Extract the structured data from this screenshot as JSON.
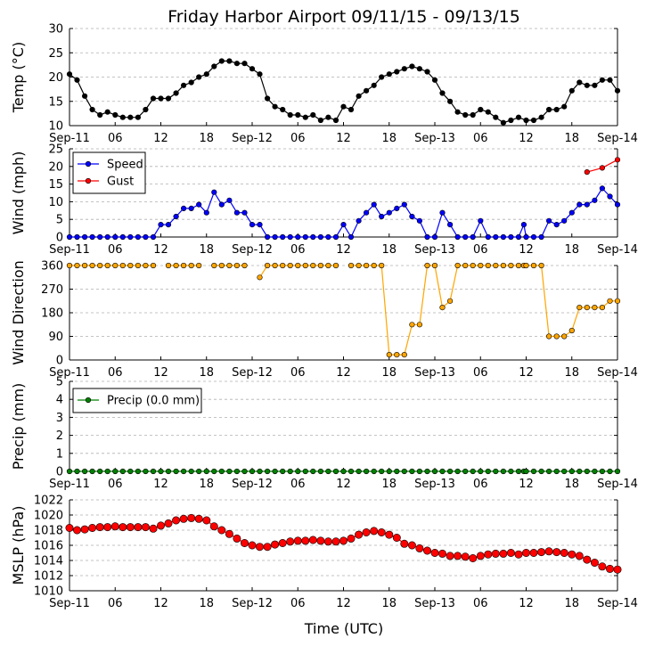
{
  "title": "Friday Harbor Airport 09/11/15 - 09/13/15",
  "xlabel": "Time (UTC)",
  "x_tick_labels": [
    "Sep-11",
    "06",
    "12",
    "18",
    "Sep-12",
    "06",
    "12",
    "18",
    "Sep-13",
    "06",
    "12",
    "18",
    "Sep-14"
  ],
  "colors": {
    "temp": "#000000",
    "speed": "#0000ff",
    "gust": "#ff0000",
    "direction": "#ffa500",
    "precip": "#008000",
    "mslp": "#ff0000",
    "grid": "#b0b0b0"
  },
  "chart_data": [
    {
      "type": "line",
      "id": "temp",
      "ylabel": "Temp (°C)",
      "ylim": [
        10,
        30
      ],
      "yticks": [
        10,
        15,
        20,
        25,
        30
      ],
      "xlim_hours": [
        0,
        72
      ],
      "grid": true,
      "series": [
        {
          "name": "Temp",
          "color": "#000000",
          "x": [
            0,
            1,
            2,
            3,
            4,
            5,
            6,
            7,
            8,
            9,
            10,
            11,
            12,
            13,
            14,
            15,
            16,
            17,
            18,
            19,
            20,
            21,
            22,
            23,
            24,
            25,
            26,
            27,
            28,
            29,
            30,
            31,
            32,
            33,
            34,
            35,
            36,
            37,
            38,
            39,
            40,
            41,
            42,
            43,
            44,
            45,
            46,
            47,
            48,
            49,
            50,
            51,
            52,
            53,
            54,
            55,
            56,
            57,
            58,
            59,
            60,
            61,
            62,
            63,
            64,
            65,
            66,
            67,
            68,
            69,
            70,
            71
          ],
          "values": [
            20.6,
            19.4,
            16.1,
            13.3,
            12.2,
            12.8,
            12.2,
            11.7,
            11.7,
            11.7,
            13.3,
            15.6,
            15.6,
            15.6,
            16.7,
            18.3,
            18.9,
            20.0,
            20.6,
            22.2,
            23.3,
            23.3,
            22.8,
            22.8,
            21.7,
            20.6,
            15.6,
            13.9,
            13.3,
            12.2,
            12.2,
            11.7,
            12.2,
            11.1,
            11.7,
            11.1,
            13.9,
            13.3,
            16.1,
            17.2,
            18.3,
            20.0,
            20.6,
            21.1,
            21.7,
            22.2,
            21.7,
            21.1,
            19.4,
            16.7,
            15.0,
            12.8,
            12.2,
            12.2,
            13.3,
            12.8,
            11.7,
            10.6,
            11.1,
            11.7,
            11.1,
            11.1,
            11.7,
            13.3,
            13.3,
            13.9,
            17.2,
            18.9,
            18.3,
            18.3,
            19.4,
            19.4
          ]
        },
        {
          "name": "Temp tail",
          "color": "#000000",
          "x": [
            71,
            72
          ],
          "values": [
            19.4,
            17.2
          ]
        }
      ]
    },
    {
      "type": "line",
      "id": "wind",
      "ylabel": "Wind (mph)",
      "ylim": [
        0,
        25
      ],
      "yticks": [
        0,
        5,
        10,
        15,
        20,
        25
      ],
      "xlim_hours": [
        0,
        72
      ],
      "legend": "upper-left",
      "legend_entries": [
        "Speed",
        "Gust"
      ],
      "grid": true,
      "series": [
        {
          "name": "Speed",
          "color": "#0000ff",
          "x": [
            0,
            1,
            2,
            3,
            4,
            5,
            6,
            7,
            8,
            9,
            10,
            11,
            12,
            13,
            14,
            15,
            16,
            17,
            18,
            19,
            20,
            21,
            22,
            23,
            24,
            25,
            26,
            27,
            28,
            29,
            30,
            31,
            32,
            33,
            34,
            35,
            36,
            37,
            38,
            39,
            40,
            41,
            42,
            43,
            44,
            45,
            46,
            47,
            48,
            49,
            50,
            51,
            52,
            53,
            54,
            55,
            56,
            57,
            58,
            59,
            59.7,
            60,
            61,
            62,
            63,
            64,
            65,
            66,
            67,
            68,
            69,
            70,
            71,
            72
          ],
          "values": [
            0,
            0,
            0,
            0,
            0,
            0,
            0,
            0,
            0,
            0,
            0,
            0,
            3.5,
            3.5,
            5.8,
            8.1,
            8.1,
            9.2,
            6.9,
            12.7,
            9.2,
            10.4,
            6.9,
            6.9,
            3.5,
            3.5,
            0,
            0,
            0,
            0,
            0,
            0,
            0,
            0,
            0,
            0,
            3.5,
            0,
            4.6,
            6.9,
            9.2,
            5.8,
            6.9,
            8.1,
            9.2,
            5.8,
            4.6,
            0,
            0,
            6.9,
            3.5,
            0,
            0,
            0,
            4.6,
            0,
            0,
            0,
            0,
            0,
            3.5,
            0,
            0,
            0,
            4.6,
            3.5,
            4.6,
            6.9,
            9.2,
            9.2,
            10.4,
            13.8,
            11.5,
            9.2
          ]
        },
        {
          "name": "Gust",
          "color": "#ff0000",
          "x": [
            68,
            70,
            72
          ],
          "values": [
            18.4,
            19.6,
            21.9
          ]
        }
      ]
    },
    {
      "type": "line",
      "id": "direction",
      "ylabel": "Wind Direction",
      "ylim": [
        0,
        360
      ],
      "yticks": [
        0,
        90,
        180,
        270,
        360
      ],
      "xlim_hours": [
        0,
        72
      ],
      "grid": true,
      "series": [
        {
          "name": "Direction (part 1)",
          "color": "#ffa500",
          "x": [
            0,
            1,
            2,
            3,
            4,
            5,
            6,
            7,
            8,
            9,
            10,
            11
          ],
          "values": [
            360,
            360,
            360,
            360,
            360,
            360,
            360,
            360,
            360,
            360,
            360,
            360
          ]
        },
        {
          "name": "Direction (part 2)",
          "color": "#ffa500",
          "x": [
            13,
            14,
            15,
            16,
            17
          ],
          "values": [
            360,
            360,
            360,
            360,
            360
          ]
        },
        {
          "name": "Direction (part 3)",
          "color": "#ffa500",
          "x": [
            19,
            20,
            21,
            22,
            23
          ],
          "values": [
            360,
            360,
            360,
            360,
            360
          ]
        },
        {
          "name": "Direction (part 4)",
          "color": "#ffa500",
          "x": [
            25,
            26,
            27,
            28,
            29,
            30,
            31,
            32,
            33,
            34,
            35
          ],
          "values": [
            315,
            360,
            360,
            360,
            360,
            360,
            360,
            360,
            360,
            360,
            360
          ]
        },
        {
          "name": "Direction (part 5)",
          "color": "#ffa500",
          "x": [
            37,
            38,
            39,
            40,
            41,
            42,
            43,
            44,
            45,
            46,
            47,
            48,
            49,
            50,
            51,
            52,
            53,
            54,
            55,
            56,
            57,
            58,
            59,
            59.7,
            60,
            61,
            62,
            63,
            64,
            65,
            66,
            67,
            68,
            69,
            70,
            71,
            72
          ],
          "values": [
            360,
            360,
            360,
            360,
            360,
            20,
            20,
            20,
            135,
            135,
            360,
            360,
            200,
            225,
            360,
            360,
            360,
            360,
            360,
            360,
            360,
            360,
            360,
            360,
            360,
            360,
            360,
            90,
            90,
            90,
            112,
            200,
            200,
            200,
            200,
            225,
            225
          ]
        }
      ]
    },
    {
      "type": "line",
      "id": "precip",
      "ylabel": "Precip (mm)",
      "ylim": [
        0,
        5
      ],
      "yticks": [
        0,
        1,
        2,
        3,
        4,
        5
      ],
      "xlim_hours": [
        0,
        72
      ],
      "legend": "upper-left",
      "legend_entries": [
        "Precip (0.0 mm)"
      ],
      "grid": true,
      "series": [
        {
          "name": "Precip (0.0 mm)",
          "color": "#008000",
          "x": [
            0,
            1,
            2,
            3,
            4,
            5,
            6,
            7,
            8,
            9,
            10,
            11,
            12,
            13,
            14,
            15,
            16,
            17,
            18,
            19,
            20,
            21,
            22,
            23,
            24,
            25,
            26,
            27,
            28,
            29,
            30,
            31,
            32,
            33,
            34,
            35,
            36,
            37,
            38,
            39,
            40,
            41,
            42,
            43,
            44,
            45,
            46,
            47,
            48,
            49,
            50,
            51,
            52,
            53,
            54,
            55,
            56,
            57,
            58,
            59,
            59.7,
            60,
            61,
            62,
            63,
            64,
            65,
            66,
            67,
            68,
            69,
            70,
            71,
            72
          ],
          "values": [
            0,
            0,
            0,
            0,
            0,
            0,
            0,
            0,
            0,
            0,
            0,
            0,
            0,
            0,
            0,
            0,
            0,
            0,
            0,
            0,
            0,
            0,
            0,
            0,
            0,
            0,
            0,
            0,
            0,
            0,
            0,
            0,
            0,
            0,
            0,
            0,
            0,
            0,
            0,
            0,
            0,
            0,
            0,
            0,
            0,
            0,
            0,
            0,
            0,
            0,
            0,
            0,
            0,
            0,
            0,
            0,
            0,
            0,
            0,
            0,
            0,
            0,
            0,
            0,
            0,
            0,
            0,
            0,
            0,
            0,
            0,
            0,
            0,
            0
          ]
        }
      ]
    },
    {
      "type": "line",
      "id": "mslp",
      "ylabel": "MSLP (hPa)",
      "ylim": [
        1010,
        1022
      ],
      "yticks": [
        1010,
        1012,
        1014,
        1016,
        1018,
        1020,
        1022
      ],
      "xlim_hours": [
        0,
        72
      ],
      "grid": true,
      "series": [
        {
          "name": "MSLP",
          "color": "#ff0000",
          "x": [
            0,
            1,
            2,
            3,
            4,
            5,
            6,
            7,
            8,
            9,
            10,
            11,
            12,
            13,
            14,
            15,
            16,
            17,
            18,
            19,
            20,
            21,
            22,
            23,
            24,
            25,
            26,
            27,
            28,
            29,
            30,
            31,
            32,
            33,
            34,
            35,
            36,
            37,
            38,
            39,
            40,
            41,
            42,
            43,
            44,
            45,
            46,
            47,
            48,
            49,
            50,
            51,
            52,
            53,
            54,
            55,
            56,
            57,
            58,
            59,
            60,
            61,
            62,
            63,
            64,
            65,
            66,
            67,
            68,
            69,
            70,
            71,
            72
          ],
          "values": [
            1018.3,
            1018.0,
            1018.1,
            1018.3,
            1018.4,
            1018.4,
            1018.5,
            1018.4,
            1018.4,
            1018.4,
            1018.4,
            1018.2,
            1018.6,
            1018.9,
            1019.3,
            1019.5,
            1019.6,
            1019.5,
            1019.3,
            1018.5,
            1018.0,
            1017.5,
            1016.9,
            1016.3,
            1016.0,
            1015.8,
            1015.8,
            1016.1,
            1016.3,
            1016.5,
            1016.6,
            1016.6,
            1016.7,
            1016.6,
            1016.5,
            1016.5,
            1016.6,
            1016.9,
            1017.4,
            1017.7,
            1017.9,
            1017.7,
            1017.4,
            1017.0,
            1016.2,
            1016.0,
            1015.6,
            1015.3,
            1015.0,
            1014.9,
            1014.6,
            1014.6,
            1014.5,
            1014.3,
            1014.6,
            1014.8,
            1014.9,
            1014.9,
            1015.0,
            1014.8,
            1015.0,
            1015.0,
            1015.1,
            1015.2,
            1015.1,
            1015.0,
            1014.8,
            1014.6,
            1014.1,
            1013.7,
            1013.2,
            1012.9,
            1012.8
          ]
        }
      ]
    }
  ]
}
